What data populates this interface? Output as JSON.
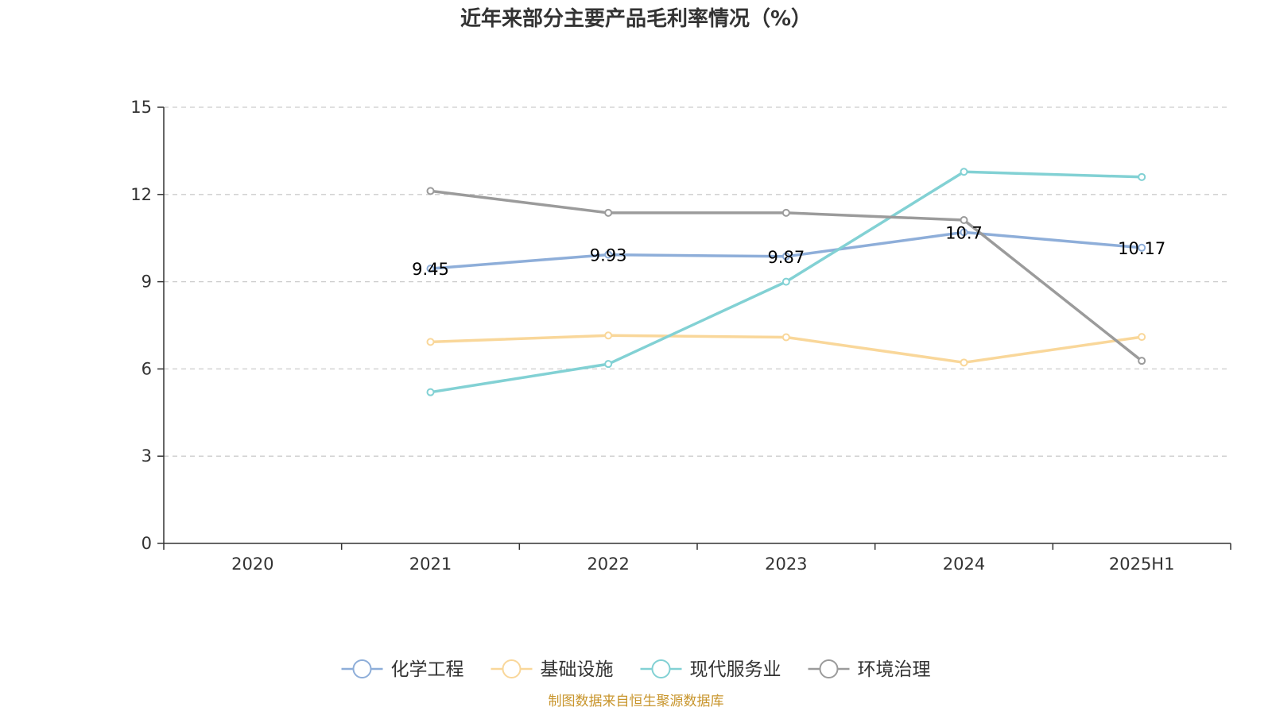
{
  "chart_data": {
    "type": "line",
    "title": "近年来部分主要产品毛利率情况（%）",
    "categories": [
      "2020",
      "2021",
      "2022",
      "2023",
      "2024",
      "2025H1"
    ],
    "ylim": [
      0,
      15
    ],
    "yticks": [
      0,
      3,
      6,
      9,
      12,
      15
    ],
    "grid": true,
    "legend_position": "bottom",
    "series": [
      {
        "name": "化学工程",
        "color": "#8eaed9",
        "values": [
          null,
          9.45,
          9.93,
          9.87,
          10.7,
          10.17
        ],
        "labeled": true
      },
      {
        "name": "基础设施",
        "color": "#f9d79a",
        "values": [
          null,
          6.93,
          7.15,
          7.09,
          6.22,
          7.1
        ],
        "labeled": false
      },
      {
        "name": "现代服务业",
        "color": "#82d1d4",
        "values": [
          null,
          5.2,
          6.17,
          9.0,
          12.78,
          12.6
        ],
        "labeled": false
      },
      {
        "name": "环境治理",
        "color": "#9b9b9b",
        "values": [
          null,
          12.12,
          11.37,
          11.37,
          11.12,
          6.28
        ],
        "labeled": false
      }
    ]
  },
  "source": {
    "text": "制图数据来自恒生聚源数据库",
    "color": "#c8952c"
  }
}
